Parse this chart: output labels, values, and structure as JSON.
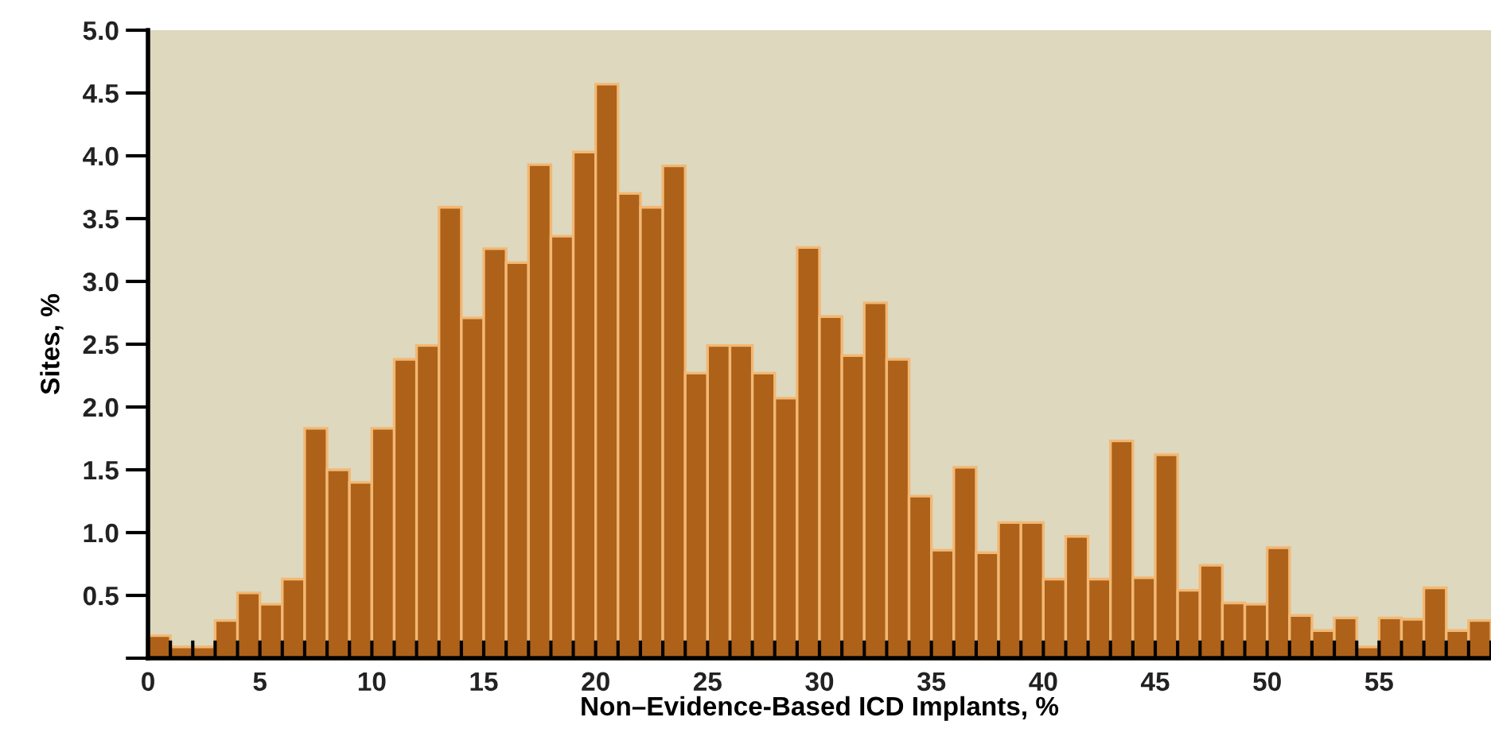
{
  "chart_data": {
    "type": "histogram",
    "xlabel": "Non–Evidence-Based ICD Implants, %",
    "ylabel": "Sites, %",
    "bins": [
      0,
      1,
      2,
      3,
      4,
      5,
      6,
      7,
      8,
      9,
      10,
      11,
      12,
      13,
      14,
      15,
      16,
      17,
      18,
      19,
      20,
      21,
      22,
      23,
      24,
      25,
      26,
      27,
      28,
      29,
      30,
      31,
      32,
      33,
      34,
      35,
      36,
      37,
      38,
      39,
      40,
      41,
      42,
      43,
      44,
      45,
      46,
      47,
      48,
      49,
      50,
      51,
      52,
      53,
      54,
      55,
      56,
      57,
      58,
      59,
      60
    ],
    "values": [
      0.18,
      0.09,
      0.09,
      0.3,
      0.52,
      0.43,
      0.63,
      1.83,
      1.5,
      1.4,
      1.83,
      2.38,
      2.49,
      3.59,
      2.71,
      3.26,
      3.15,
      3.93,
      3.36,
      4.03,
      4.57,
      3.7,
      3.59,
      3.92,
      2.27,
      2.49,
      2.49,
      2.27,
      2.07,
      3.27,
      2.72,
      2.41,
      2.83,
      2.38,
      1.29,
      0.86,
      1.52,
      0.84,
      1.08,
      1.08,
      0.63,
      0.97,
      0.63,
      1.73,
      0.64,
      1.62,
      0.54,
      0.74,
      0.44,
      0.43,
      0.88,
      0.34,
      0.22,
      0.32,
      0.09,
      0.32,
      0.31,
      0.56,
      0.22,
      0.3
    ],
    "color": "#ad6119",
    "xlim": [
      0,
      60
    ],
    "xticks": [
      0,
      {
        "value": 1,
        "label": null
      },
      {
        "value": 2,
        "label": null
      },
      {
        "value": 3,
        "label": null
      },
      {
        "value": 4,
        "label": null
      },
      5,
      {
        "value": 6,
        "label": null
      },
      {
        "value": 7,
        "label": null
      },
      {
        "value": 8,
        "label": null
      },
      {
        "value": 9,
        "label": null
      },
      10,
      {
        "value": 11,
        "label": null
      },
      {
        "value": 12,
        "label": null
      },
      {
        "value": 13,
        "label": null
      },
      {
        "value": 14,
        "label": null
      },
      15,
      {
        "value": 16,
        "label": null
      },
      {
        "value": 17,
        "label": null
      },
      {
        "value": 18,
        "label": null
      },
      {
        "value": 19,
        "label": null
      },
      20,
      {
        "value": 21,
        "label": null
      },
      {
        "value": 22,
        "label": null
      },
      {
        "value": 23,
        "label": null
      },
      {
        "value": 24,
        "label": null
      },
      25,
      {
        "value": 26,
        "label": null
      },
      {
        "value": 27,
        "label": null
      },
      {
        "value": 28,
        "label": null
      },
      {
        "value": 29,
        "label": null
      },
      30,
      {
        "value": 31,
        "label": null
      },
      {
        "value": 32,
        "label": null
      },
      {
        "value": 33,
        "label": null
      },
      {
        "value": 34,
        "label": null
      },
      35,
      {
        "value": 36,
        "label": null
      },
      {
        "value": 37,
        "label": null
      },
      {
        "value": 38,
        "label": null
      },
      {
        "value": 39,
        "label": null
      },
      40,
      {
        "value": 41,
        "label": null
      },
      {
        "value": 42,
        "label": null
      },
      {
        "value": 43,
        "label": null
      },
      {
        "value": 44,
        "label": null
      },
      45,
      {
        "value": 46,
        "label": null
      },
      {
        "value": 47,
        "label": null
      },
      {
        "value": 48,
        "label": null
      },
      {
        "value": 49,
        "label": null
      },
      50,
      {
        "value": 51,
        "label": null
      },
      {
        "value": 52,
        "label": null
      },
      {
        "value": 53,
        "label": null
      },
      {
        "value": 54,
        "label": null
      },
      55,
      {
        "value": 56,
        "label": null
      },
      {
        "value": 57,
        "label": null
      },
      {
        "value": 58,
        "label": null
      },
      {
        "value": 59,
        "label": null
      },
      {
        "value": 60,
        "label": null
      }
    ],
    "ylim": [
      0,
      5.0
    ],
    "yticks": [
      {
        "value": 0,
        "label": null
      },
      {
        "value": 0.5,
        "label": "0.5"
      },
      {
        "value": 1.0,
        "label": "1.0"
      },
      {
        "value": 1.5,
        "label": "1.5"
      },
      {
        "value": 2.0,
        "label": "2.0"
      },
      {
        "value": 2.5,
        "label": "2.5"
      },
      {
        "value": 3.0,
        "label": "3.0"
      },
      {
        "value": 3.5,
        "label": "3.5"
      },
      {
        "value": 4.0,
        "label": "4.0"
      },
      {
        "value": 4.5,
        "label": "4.5"
      },
      {
        "value": 5.0,
        "label": "5.0"
      }
    ],
    "grid": false
  }
}
